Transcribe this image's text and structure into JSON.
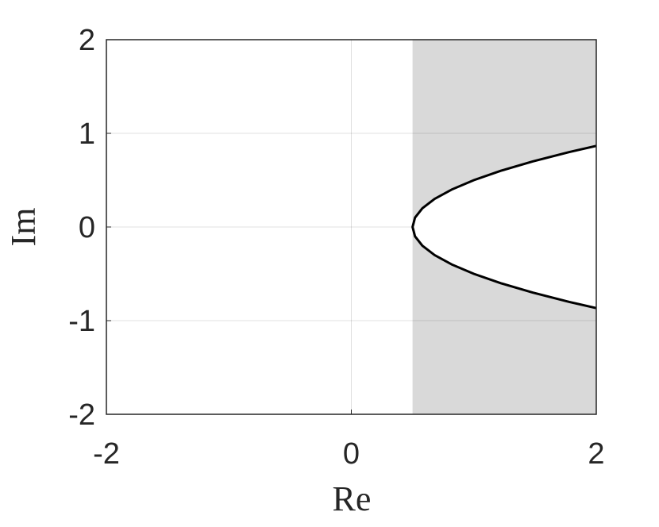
{
  "chart_data": {
    "type": "line",
    "x_label": "Re",
    "y_label": "Im",
    "xlim": [
      -2,
      2
    ],
    "ylim": [
      -2,
      2
    ],
    "xticks": [
      -2,
      0,
      2
    ],
    "yticks": [
      -2,
      -1,
      0,
      1,
      2
    ],
    "grid": true,
    "shaded_region_x": [
      0.5,
      2
    ],
    "shade_color": "#d9d9d9",
    "series": [
      {
        "color": "#000000",
        "x": [
          2.0,
          1.78,
          1.48,
          1.22,
          1.0,
          0.82,
          0.68,
          0.58,
          0.52,
          0.5,
          0.52,
          0.58,
          0.68,
          0.82,
          1.0,
          1.22,
          1.48,
          1.78,
          2.0
        ],
        "values": [
          -0.866,
          -0.8,
          -0.7,
          -0.6,
          -0.5,
          -0.4,
          -0.3,
          -0.2,
          -0.1,
          0,
          0.1,
          0.2,
          0.3,
          0.4,
          0.5,
          0.6,
          0.7,
          0.8,
          0.866
        ]
      }
    ]
  }
}
